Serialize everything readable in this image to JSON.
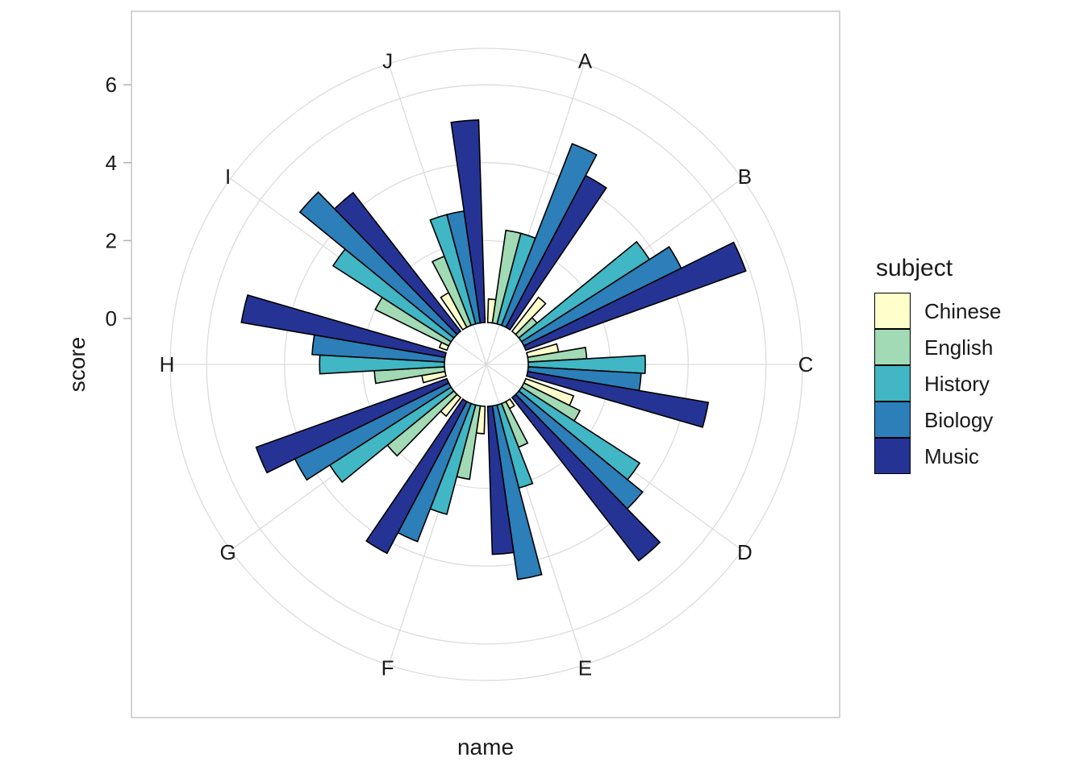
{
  "chart_data": {
    "type": "bar",
    "coord": "polar",
    "title": "",
    "xlabel": "name",
    "ylabel": "score",
    "categories": [
      "A",
      "B",
      "C",
      "D",
      "E",
      "F",
      "G",
      "H",
      "I",
      "J"
    ],
    "series": [
      {
        "name": "Chinese",
        "color": "#FFFFCC",
        "values": [
          0.5,
          1.0,
          0.7,
          1.2,
          0.1,
          0.6,
          0.5,
          0.5,
          0.1,
          0.9
        ]
      },
      {
        "name": "English",
        "color": "#A1DAB4",
        "values": [
          2.3,
          0.5,
          1.4,
          1.5,
          1.1,
          1.8,
          2.1,
          1.7,
          2.0,
          1.8
        ]
      },
      {
        "name": "History",
        "color": "#41B6C4",
        "values": [
          2.3,
          3.8,
          2.9,
          3.5,
          2.1,
          2.8,
          3.6,
          3.1,
          3.5,
          2.8
        ]
      },
      {
        "name": "Biology",
        "color": "#2C7FB8",
        "values": [
          4.9,
          4.4,
          2.8,
          4.0,
          4.4,
          3.7,
          4.3,
          3.3,
          5.0,
          2.8
        ]
      },
      {
        "name": "Music",
        "color": "#253494",
        "values": [
          4.3,
          5.9,
          4.6,
          5.2,
          3.7,
          4.3,
          5.1,
          5.2,
          4.4,
          5.1
        ]
      }
    ],
    "r_axis": {
      "ticks": [
        0,
        2,
        4,
        6
      ],
      "tick_labels": [
        "0",
        "2",
        "4",
        "6"
      ],
      "range": [
        0,
        6.9
      ]
    },
    "legend": {
      "title": "subject",
      "position": "right"
    },
    "grid": true,
    "styles": {
      "grid_color": "#DCDCDC",
      "panel_border_color": "#C6C6C6",
      "tick_color": "#B3B3B3",
      "bar_stroke": "#000000",
      "text_color": "#1A1A1A",
      "background": "#FFFFFF"
    }
  }
}
